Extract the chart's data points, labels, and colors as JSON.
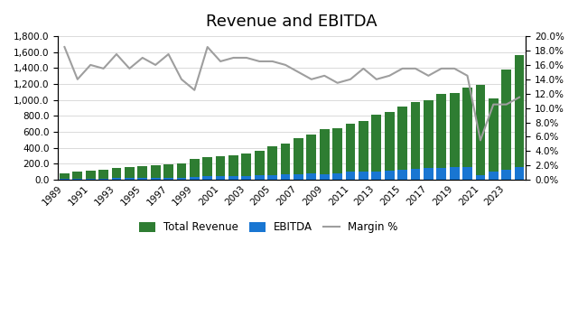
{
  "title": "Revenue and EBITDA",
  "years": [
    1989,
    1990,
    1991,
    1992,
    1993,
    1994,
    1995,
    1996,
    1997,
    1998,
    1999,
    2000,
    2001,
    2002,
    2003,
    2004,
    2005,
    2006,
    2007,
    2008,
    2009,
    2010,
    2011,
    2012,
    2013,
    2014,
    2015,
    2016,
    2017,
    2018,
    2019,
    2020,
    2021,
    2022,
    2023,
    2024
  ],
  "revenue": [
    85,
    103,
    113,
    125,
    145,
    160,
    175,
    185,
    190,
    210,
    260,
    280,
    300,
    310,
    325,
    360,
    420,
    450,
    520,
    570,
    635,
    645,
    705,
    735,
    820,
    855,
    920,
    980,
    1000,
    1080,
    1090,
    1155,
    1195,
    1020,
    1385,
    1565
  ],
  "ebitda": [
    9,
    11,
    13,
    16,
    19,
    21,
    22,
    21,
    24,
    24,
    38,
    43,
    46,
    48,
    50,
    56,
    63,
    66,
    73,
    75,
    72,
    83,
    98,
    103,
    107,
    117,
    128,
    137,
    147,
    152,
    157,
    161,
    63,
    102,
    122,
    162
  ],
  "margin_pct": [
    0.185,
    0.14,
    0.16,
    0.155,
    0.175,
    0.155,
    0.17,
    0.16,
    0.175,
    0.14,
    0.125,
    0.185,
    0.165,
    0.17,
    0.17,
    0.165,
    0.165,
    0.16,
    0.15,
    0.14,
    0.145,
    0.135,
    0.14,
    0.155,
    0.14,
    0.145,
    0.155,
    0.155,
    0.145,
    0.155,
    0.155,
    0.145,
    0.055,
    0.105,
    0.105,
    0.115
  ],
  "revenue_color": "#2e7d32",
  "ebitda_color": "#1976d2",
  "margin_color": "#9e9e9e",
  "background_color": "#ffffff",
  "grid_color": "#cccccc",
  "yticks_left": [
    0,
    200,
    400,
    600,
    800,
    1000,
    1200,
    1400,
    1600,
    1800
  ],
  "yticks_right": [
    0.0,
    0.02,
    0.04,
    0.06,
    0.08,
    0.1,
    0.12,
    0.14,
    0.16,
    0.18,
    0.2
  ],
  "ylim_left": [
    0,
    1800
  ],
  "ylim_right": [
    0,
    0.2
  ],
  "legend_labels": [
    "Total Revenue",
    "EBITDA",
    "Margin %"
  ]
}
